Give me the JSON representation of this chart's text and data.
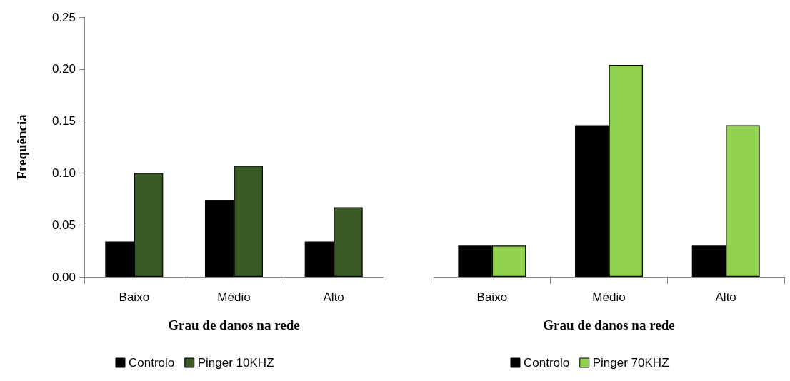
{
  "chart_data": [
    {
      "type": "bar",
      "categories": [
        "Baixo",
        "Médio",
        "Alto"
      ],
      "xlabel": "Grau de danos na rede",
      "ylabel": "Frequência",
      "ylim": [
        0,
        0.25
      ],
      "yticks": [
        {
          "value": 0,
          "label": "0.00"
        },
        {
          "value": 0.05,
          "label": "0.05"
        },
        {
          "value": 0.1,
          "label": "0.10"
        },
        {
          "value": 0.15,
          "label": "0.15"
        },
        {
          "value": 0.2,
          "label": "0.20"
        },
        {
          "value": 0.25,
          "label": "0.25"
        }
      ],
      "grid": false,
      "legend": "bottom",
      "series": [
        {
          "name": "Controlo",
          "color": "#000000",
          "values": [
            0.034,
            0.074,
            0.034
          ]
        },
        {
          "name": "Pinger 10KHZ",
          "color": "#3b5a26",
          "values": [
            0.1,
            0.107,
            0.067
          ]
        }
      ]
    },
    {
      "type": "bar",
      "categories": [
        "Baixo",
        "Médio",
        "Alto"
      ],
      "xlabel": "Grau de danos na rede",
      "ylim": [
        0,
        0.25
      ],
      "grid": false,
      "legend": "bottom",
      "tick_labels": "x",
      "series": [
        {
          "name": "Controlo",
          "color": "#000000",
          "values": [
            0.03,
            0.146,
            0.03
          ]
        },
        {
          "name": "Pinger 70KHZ",
          "color": "#92d050",
          "values": [
            0.03,
            0.204,
            0.146
          ]
        }
      ]
    }
  ]
}
